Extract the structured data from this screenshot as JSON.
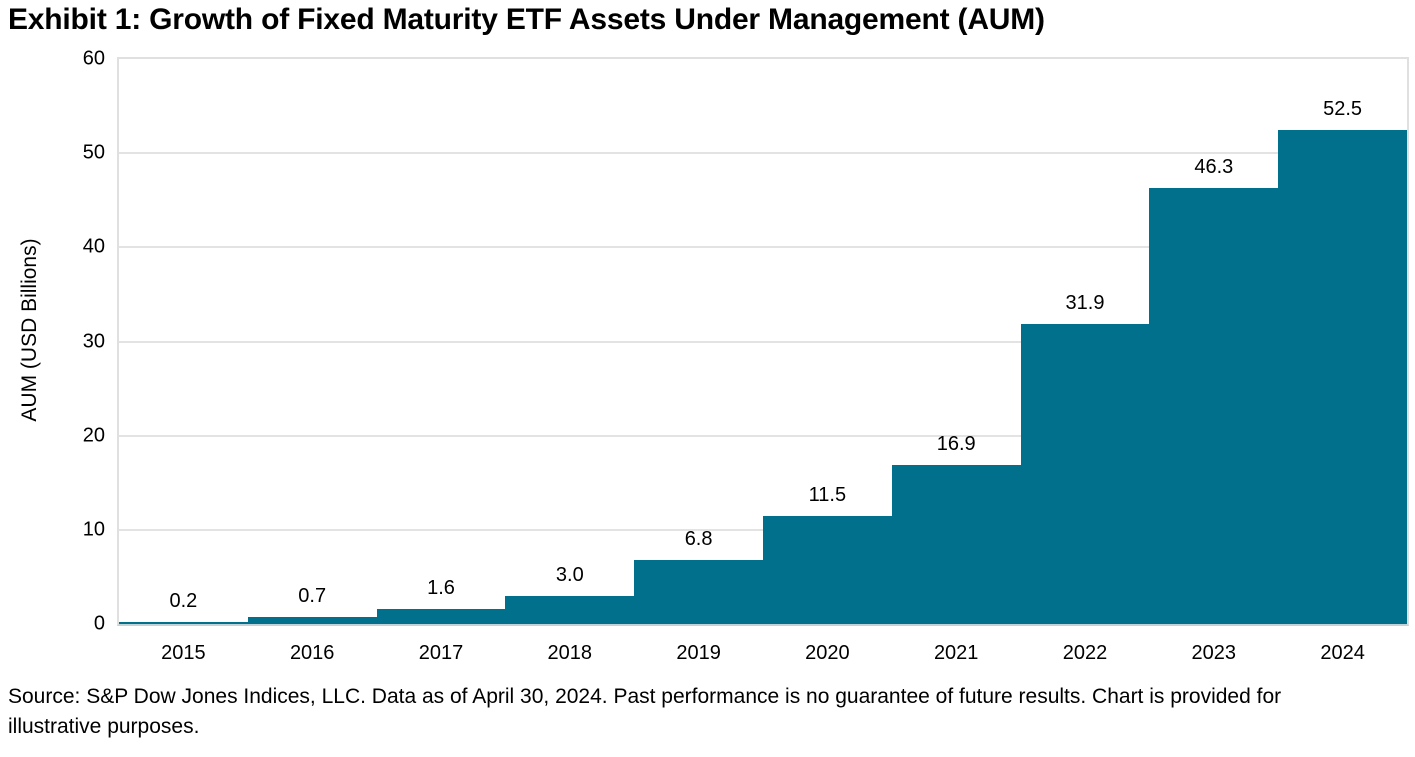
{
  "title": "Exhibit 1: Growth of Fixed Maturity ETF Assets Under Management (AUM)",
  "footer": "Source: S&P Dow Jones Indices, LLC. Data as of April 30, 2024. Past performance is no guarantee of future results. Chart is provided for illustrative purposes.",
  "chart_data": {
    "type": "bar",
    "title": "Exhibit 1: Growth of Fixed Maturity ETF Assets Under Management (AUM)",
    "categories": [
      "2015",
      "2016",
      "2017",
      "2018",
      "2019",
      "2020",
      "2021",
      "2022",
      "2023",
      "2024"
    ],
    "values": [
      0.2,
      0.7,
      1.6,
      3.0,
      6.8,
      11.5,
      16.9,
      31.9,
      46.3,
      52.5
    ],
    "data_labels": [
      "0.2",
      "0.7",
      "1.6",
      "3.0",
      "6.8",
      "11.5",
      "16.9",
      "31.9",
      "46.3",
      "52.5"
    ],
    "xlabel": "",
    "ylabel": "AUM (USD Billions)",
    "ylim": [
      0,
      60
    ],
    "yticks": [
      0,
      10,
      20,
      30,
      40,
      50,
      60
    ],
    "grid": true,
    "legend": false,
    "bar_gap": 0,
    "colors": {
      "bar": "#00708C",
      "gridline": "#E3E3E3",
      "plot_border": "#E0E0E0",
      "baseline": "#C4D2D7",
      "text": "#000000"
    }
  }
}
